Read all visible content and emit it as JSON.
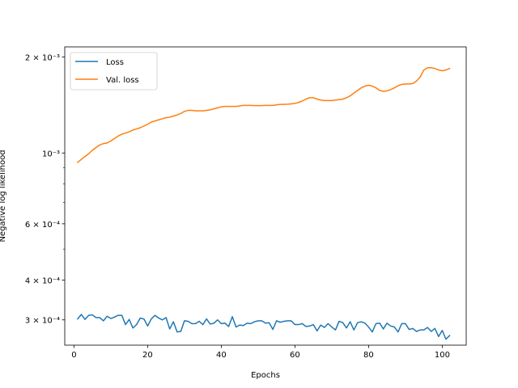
{
  "chart_data": {
    "type": "line",
    "title": "",
    "xlabel": "Epochs",
    "ylabel": "Negative log likelihood",
    "yscale": "log",
    "xlim": [
      -2.5,
      106.5
    ],
    "ylim": [
      0.00025,
      0.00215
    ],
    "grid": false,
    "legend_position": "top-left",
    "x_ticks": [
      {
        "value": 0,
        "label": "0"
      },
      {
        "value": 20,
        "label": "20"
      },
      {
        "value": 40,
        "label": "40"
      },
      {
        "value": 60,
        "label": "60"
      },
      {
        "value": 80,
        "label": "80"
      },
      {
        "value": 100,
        "label": "100"
      }
    ],
    "y_ticks": [
      {
        "value": 0.0003,
        "label": "3 × 10⁻⁴"
      },
      {
        "value": 0.0004,
        "label": "4 × 10⁻⁴"
      },
      {
        "value": 0.0006,
        "label": "6 × 10⁻⁴"
      },
      {
        "value": 0.001,
        "label": "10⁻³"
      },
      {
        "value": 0.002,
        "label": "2 × 10⁻³"
      }
    ],
    "y_minor_ticks": [
      0.0005,
      0.0007,
      0.0008,
      0.0009
    ],
    "x": [
      1,
      2,
      3,
      4,
      5,
      6,
      7,
      8,
      9,
      10,
      11,
      12,
      13,
      14,
      15,
      16,
      17,
      18,
      19,
      20,
      21,
      22,
      23,
      24,
      25,
      26,
      27,
      28,
      29,
      30,
      31,
      32,
      33,
      34,
      35,
      36,
      37,
      38,
      39,
      40,
      41,
      42,
      43,
      44,
      45,
      46,
      47,
      48,
      49,
      50,
      51,
      52,
      53,
      54,
      55,
      56,
      57,
      58,
      59,
      60,
      61,
      62,
      63,
      64,
      65,
      66,
      67,
      68,
      69,
      70,
      71,
      72,
      73,
      74,
      75,
      76,
      77,
      78,
      79,
      80,
      81,
      82,
      83,
      84,
      85,
      86,
      87,
      88,
      89,
      90,
      91,
      92,
      93,
      94,
      95,
      96,
      97,
      98,
      99,
      100,
      101,
      102
    ],
    "series": [
      {
        "name": "Loss",
        "color": "#1f77b4",
        "values": [
          0.000302,
          0.000312,
          0.000301,
          0.00031,
          0.000311,
          0.000305,
          0.000305,
          0.000298,
          0.000308,
          0.000303,
          0.000306,
          0.00031,
          0.00031,
          0.00029,
          0.000301,
          0.000283,
          0.00029,
          0.000304,
          0.000302,
          0.000287,
          0.000302,
          0.00031,
          0.000304,
          0.0003,
          0.000305,
          0.000281,
          0.000296,
          0.000275,
          0.000276,
          0.000298,
          0.000297,
          0.000292,
          0.000292,
          0.000297,
          0.00029,
          0.000302,
          0.000291,
          0.000293,
          0.0003,
          0.000292,
          0.000293,
          0.000286,
          0.000307,
          0.000285,
          0.000289,
          0.000288,
          0.000293,
          0.000292,
          0.000296,
          0.000298,
          0.000298,
          0.000293,
          0.000294,
          0.00028,
          0.000298,
          0.000295,
          0.000297,
          0.000298,
          0.000298,
          0.00029,
          0.00029,
          0.000292,
          0.000286,
          0.000287,
          0.00029,
          0.000277,
          0.000289,
          0.000284,
          0.000292,
          0.000285,
          0.000279,
          0.000297,
          0.000294,
          0.000283,
          0.000296,
          0.000279,
          0.000294,
          0.000296,
          0.000293,
          0.000285,
          0.000275,
          0.000292,
          0.000293,
          0.000281,
          0.000293,
          0.000287,
          0.000285,
          0.000275,
          0.000292,
          0.000292,
          0.00028,
          0.000282,
          0.000276,
          0.000279,
          0.000279,
          0.000284,
          0.000276,
          0.000282,
          0.000266,
          0.000278,
          0.000261,
          0.000268
        ]
      },
      {
        "name": "Val. loss",
        "color": "#ff7f0e",
        "values": [
          0.000935,
          0.000955,
          0.000975,
          0.000995,
          0.00102,
          0.00104,
          0.00106,
          0.00107,
          0.001075,
          0.00109,
          0.00111,
          0.00113,
          0.001145,
          0.001155,
          0.001165,
          0.00118,
          0.00119,
          0.0012,
          0.001215,
          0.00123,
          0.00125,
          0.00126,
          0.00127,
          0.00128,
          0.00129,
          0.001295,
          0.001305,
          0.001315,
          0.00133,
          0.00135,
          0.00136,
          0.00136,
          0.001355,
          0.001355,
          0.001355,
          0.00136,
          0.001365,
          0.001375,
          0.001385,
          0.001395,
          0.0014,
          0.0014,
          0.0014,
          0.0014,
          0.001405,
          0.00141,
          0.00141,
          0.00141,
          0.001408,
          0.001408,
          0.001408,
          0.00141,
          0.00141,
          0.00141,
          0.001415,
          0.00142,
          0.00142,
          0.001422,
          0.001425,
          0.00143,
          0.00144,
          0.001455,
          0.001475,
          0.00149,
          0.00149,
          0.001475,
          0.001465,
          0.00146,
          0.00146,
          0.00146,
          0.001465,
          0.00147,
          0.001475,
          0.00149,
          0.00151,
          0.00154,
          0.00157,
          0.0016,
          0.00162,
          0.00163,
          0.00162,
          0.0016,
          0.00157,
          0.00156,
          0.001565,
          0.00158,
          0.0016,
          0.001625,
          0.00164,
          0.001645,
          0.001645,
          0.00165,
          0.00168,
          0.00173,
          0.00182,
          0.00185,
          0.00185,
          0.00184,
          0.00182,
          0.00181,
          0.00182,
          0.00184
        ]
      }
    ]
  }
}
